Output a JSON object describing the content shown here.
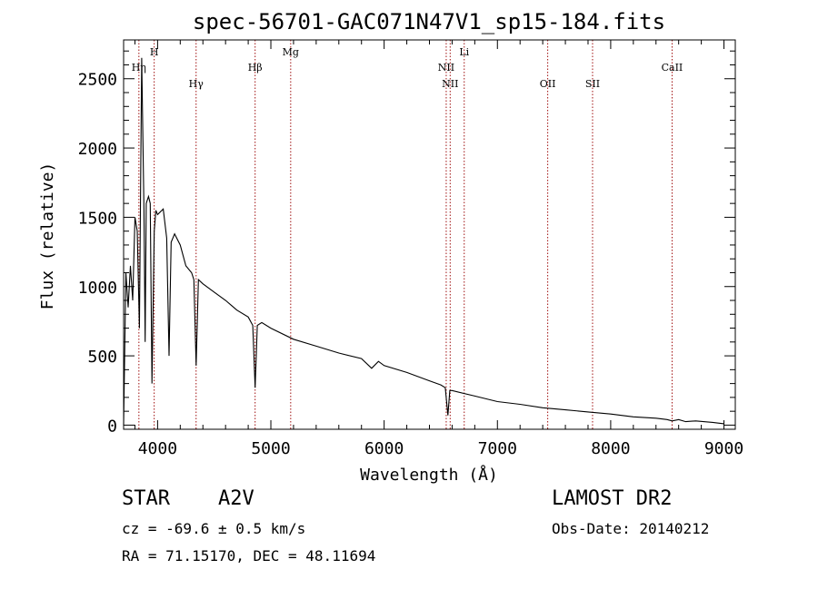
{
  "chart_data": {
    "type": "line",
    "title": "spec-56701-GAC071N47V1_sp15-184.fits",
    "xlabel": "Wavelength (Å)",
    "ylabel": "Flux (relative)",
    "xlim": [
      3700,
      9100
    ],
    "ylim": [
      -30,
      2780
    ],
    "xticks": [
      4000,
      5000,
      6000,
      7000,
      8000,
      9000
    ],
    "yticks": [
      0,
      500,
      1000,
      1500,
      2000,
      2500
    ],
    "grid": false,
    "lines": [
      {
        "label": "Hη",
        "x": 3835,
        "label_row": 1
      },
      {
        "label": "H",
        "x": 3970,
        "label_row": 0
      },
      {
        "label": "Hγ",
        "x": 4340,
        "label_row": 2
      },
      {
        "label": "Hβ",
        "x": 4861,
        "label_row": 1
      },
      {
        "label": "Mg",
        "x": 5175,
        "label_row": 0
      },
      {
        "label": "NII",
        "x": 6548,
        "label_row": 1
      },
      {
        "label": "NII",
        "x": 6583,
        "label_row": 2
      },
      {
        "label": "Li",
        "x": 6707,
        "label_row": 0
      },
      {
        "label": "OII",
        "x": 7444,
        "label_row": 2
      },
      {
        "label": "SII",
        "x": 7840,
        "label_row": 2
      },
      {
        "label": "CaII",
        "x": 8542,
        "label_row": 1
      }
    ],
    "spectrum": {
      "x": [
        3700,
        3720,
        3740,
        3760,
        3780,
        3800,
        3820,
        3840,
        3860,
        3880,
        3890,
        3900,
        3920,
        3935,
        3950,
        3970,
        3985,
        4000,
        4050,
        4080,
        4101,
        4120,
        4150,
        4200,
        4250,
        4300,
        4320,
        4340,
        4360,
        4400,
        4500,
        4600,
        4700,
        4800,
        4840,
        4861,
        4880,
        4920,
        5000,
        5200,
        5400,
        5600,
        5800,
        5890,
        5950,
        6000,
        6200,
        6400,
        6500,
        6540,
        6563,
        6580,
        6600,
        6800,
        7000,
        7200,
        7400,
        7600,
        7800,
        8000,
        8200,
        8400,
        8498,
        8542,
        8600,
        8662,
        8750,
        8900,
        9000
      ],
      "y": [
        0,
        1100,
        850,
        1150,
        900,
        1500,
        1400,
        700,
        2650,
        1550,
        600,
        1600,
        1650,
        1600,
        300,
        1400,
        1550,
        1520,
        1560,
        1350,
        500,
        1320,
        1380,
        1300,
        1150,
        1100,
        1050,
        430,
        1050,
        1020,
        960,
        900,
        830,
        780,
        720,
        270,
        720,
        740,
        700,
        620,
        570,
        520,
        480,
        410,
        460,
        430,
        380,
        320,
        290,
        270,
        70,
        250,
        250,
        210,
        170,
        150,
        125,
        110,
        95,
        80,
        60,
        50,
        40,
        30,
        40,
        25,
        30,
        20,
        10
      ]
    }
  },
  "footer": {
    "object_class": "STAR",
    "subclass": "A2V",
    "survey": "LAMOST DR2",
    "redshift": "cz = -69.6 ± 0.5 km/s",
    "obs_date": "Obs-Date: 20140212",
    "coords": "RA =  71.15170, DEC =  48.11694"
  }
}
